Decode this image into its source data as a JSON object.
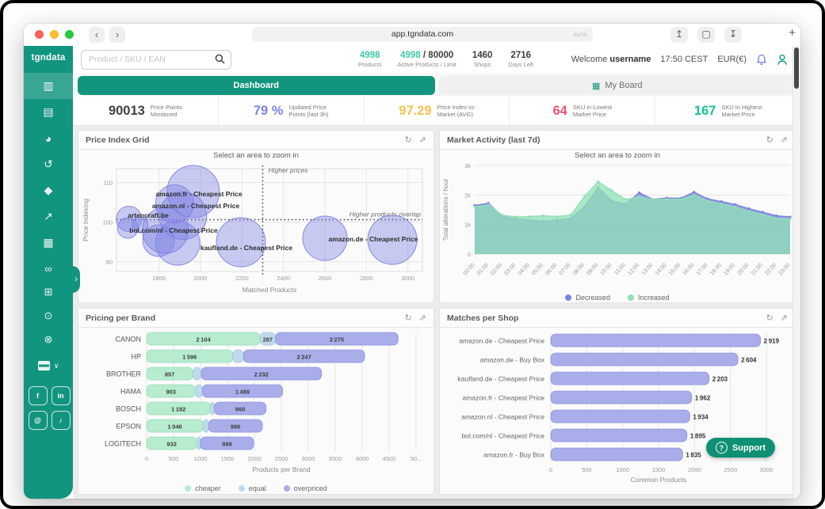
{
  "browser": {
    "url": "app.tgndata.com",
    "sync_label": "sync",
    "traffic_lights": [
      "#ff5f57",
      "#febc2e",
      "#28c840"
    ]
  },
  "brand": {
    "logo": "tgndata",
    "teal": "#12957e"
  },
  "sidebar": {
    "nav": [
      {
        "id": "dashboard",
        "active": true
      },
      {
        "id": "products",
        "active": false
      },
      {
        "id": "analytics",
        "active": false
      },
      {
        "id": "history",
        "active": false
      },
      {
        "id": "tags",
        "active": false
      },
      {
        "id": "trends",
        "active": false
      },
      {
        "id": "reports",
        "active": false
      }
    ],
    "tools": [
      {
        "id": "links"
      },
      {
        "id": "board"
      },
      {
        "id": "notifications"
      },
      {
        "id": "help"
      }
    ],
    "socials": [
      {
        "id": "facebook",
        "label": "f"
      },
      {
        "id": "linkedin",
        "label": "in"
      },
      {
        "id": "instagram",
        "label": "@"
      },
      {
        "id": "tiktok",
        "label": "♪"
      }
    ]
  },
  "header": {
    "search_placeholder": "Product / SKU / EAN",
    "stats": [
      {
        "value": "4998",
        "value2": "",
        "label": "Products",
        "accent": true
      },
      {
        "value": "4998",
        "value2": " / 80000",
        "label": "Active Products / Limit",
        "accent": true
      },
      {
        "value": "1460",
        "value2": "",
        "label": "Shops",
        "accent": false
      },
      {
        "value": "2716",
        "value2": "",
        "label": "Days Left",
        "accent": false
      }
    ],
    "welcome_prefix": "Welcome",
    "username": "username",
    "time": "17:50 CEST",
    "currency": "EUR(€)"
  },
  "tabs": [
    {
      "label": "Dashboard",
      "active": true
    },
    {
      "label": "My Board",
      "active": false
    }
  ],
  "kpis": [
    {
      "value": "90013",
      "line1": "Price Points",
      "line2": "Monitored",
      "color": "#414141"
    },
    {
      "value": "79 %",
      "line1": "Updated Price",
      "line2": "Points (last 3h)",
      "color": "#7b82e4"
    },
    {
      "value": "97.29",
      "line1": "Price Index vs",
      "line2": "Market (AVG)",
      "color": "#f6c24f"
    },
    {
      "value": "64",
      "line1": "SKU in Lowest",
      "line2": "Market Price",
      "color": "#f25270"
    },
    {
      "value": "167",
      "line1": "SKU in Highest",
      "line2": "Market Price",
      "color": "#15c39a"
    }
  ],
  "support_label": "Support",
  "chart_data": [
    {
      "type": "scatter",
      "title": "Price Index Grid",
      "subtitle": "Select an area to zoom in",
      "xlabel": "Matched Products",
      "ylabel": "Price Indexing",
      "xlim": [
        1595,
        3070
      ],
      "ylim": [
        87.5,
        113.5
      ],
      "xticks": [
        1800,
        2000,
        2200,
        2400,
        2600,
        2800,
        3000
      ],
      "yticks": [
        90,
        100,
        110
      ],
      "threshold_x": 2300,
      "threshold_y": 100.6,
      "annotation_v": "Higher prices",
      "annotation_h": "Higher products overlap",
      "bubbles": [
        {
          "x": 1655,
          "y": 100.8,
          "r": 16
        },
        {
          "x": 1650,
          "y": 98.5,
          "r": 13
        },
        {
          "x": 1708,
          "y": 99.3,
          "r": 10
        },
        {
          "x": 1875,
          "y": 104.6,
          "r": 24
        },
        {
          "x": 1965,
          "y": 107.7,
          "r": 33
        },
        {
          "x": 1915,
          "y": 101.6,
          "r": 30
        },
        {
          "x": 1830,
          "y": 97.9,
          "r": 29
        },
        {
          "x": 1890,
          "y": 94.7,
          "r": 28
        },
        {
          "x": 1798,
          "y": 95.3,
          "r": 20
        },
        {
          "x": 2195,
          "y": 94.9,
          "r": 31
        },
        {
          "x": 2600,
          "y": 95.9,
          "r": 28
        },
        {
          "x": 2925,
          "y": 95.5,
          "r": 31
        }
      ],
      "labels": [
        {
          "text": "amazon.fr - Cheapest Price",
          "lx": 152,
          "ly": 45
        },
        {
          "text": "amazon.nl - Cheapest Price",
          "lx": 148,
          "ly": 60
        },
        {
          "text": "artencraft.be",
          "lx": 88,
          "ly": 72
        },
        {
          "text": "bol.com/nl - Cheapest Price",
          "lx": 120,
          "ly": 91
        },
        {
          "text": "kaufland.de - Cheapest Price",
          "lx": 212,
          "ly": 113
        },
        {
          "text": "amazon.de - Cheapest Price",
          "lx": 372,
          "ly": 102
        }
      ],
      "bubble_color": "#7e84e3"
    },
    {
      "type": "area",
      "title": "Market Activity (last 7d)",
      "subtitle": "Select an area to zoom in",
      "ylabel": "Total alterations / hour",
      "ylim": [
        0,
        3000
      ],
      "ytick_labels": [
        "0",
        "1k",
        "2k",
        "3k"
      ],
      "yticks": [
        0,
        1000,
        2000,
        3000
      ],
      "x": [
        "00:00",
        "01:00",
        "02:00",
        "03:00",
        "04:00",
        "05:00",
        "06:00",
        "07:00",
        "08:00",
        "09:00",
        "10:00",
        "11:00",
        "12:00",
        "13:00",
        "14:00",
        "15:00",
        "16:00",
        "17:00",
        "18:00",
        "19:00",
        "20:00",
        "21:00",
        "22:00",
        "23:00"
      ],
      "series": [
        {
          "name": "Decreased",
          "color": "#7b82e0",
          "values": [
            1650,
            1720,
            1280,
            1200,
            1150,
            1120,
            1150,
            1200,
            1600,
            2250,
            1800,
            1700,
            2080,
            1850,
            1900,
            1890,
            2100,
            1870,
            1780,
            1680,
            1540,
            1420,
            1300,
            1260
          ]
        },
        {
          "name": "Increased",
          "color": "#8fe0b4",
          "values": [
            1600,
            1660,
            1320,
            1260,
            1270,
            1300,
            1270,
            1320,
            1950,
            2450,
            2150,
            1850,
            1950,
            1840,
            1860,
            1850,
            2000,
            1800,
            1700,
            1600,
            1450,
            1340,
            1210,
            1200
          ]
        }
      ],
      "legend_position": "bottom"
    },
    {
      "type": "bar",
      "title": "Pricing per Brand",
      "orientation": "horizontal",
      "stacked": true,
      "categories": [
        "CANON",
        "HP",
        "BROTHER",
        "HAMA",
        "BOSCH",
        "EPSON",
        "LOGITECH"
      ],
      "series": [
        {
          "name": "cheaper",
          "color": "#b7eccf",
          "stroke": "#9bdcb8",
          "values": [
            2104,
            1596,
            857,
            903,
            1182,
            1046,
            932
          ]
        },
        {
          "name": "equal",
          "color": "#bedbeb",
          "stroke": "#a5c8dd",
          "values": [
            287,
            202,
            156,
            131,
            74,
            105,
            65
          ]
        },
        {
          "name": "overpriced",
          "color": "#a9ade9",
          "stroke": "#8d92dd",
          "values": [
            2275,
            2247,
            2232,
            1489,
            960,
            996,
            989
          ]
        }
      ],
      "xlim": [
        0,
        5000
      ],
      "xtick_labels": [
        "0",
        "500",
        "1000",
        "1500",
        "2000",
        "2500",
        "3000",
        "3500",
        "4000",
        "4500",
        "50..."
      ],
      "xlabel": "Products per Brand",
      "legend_position": "bottom"
    },
    {
      "type": "bar",
      "title": "Matches per Shop",
      "orientation": "horizontal",
      "stacked": false,
      "categories": [
        "amazon.de - Cheapest Price",
        "amazon.de - Buy Box",
        "kaufland.de - Cheapest Price",
        "amazon.fr - Cheapest Price",
        "amazon.nl - Cheapest Price",
        "bol.com/nl - Cheapest Price",
        "amazon.fr - Buy Box"
      ],
      "values": [
        2919,
        2604,
        2203,
        1962,
        1934,
        1895,
        1835
      ],
      "bar_color": "#a9ade9",
      "bar_stroke": "#8d92dd",
      "xlim": [
        0,
        3000
      ],
      "xtick_labels": [
        "0",
        "500",
        "1000",
        "1500",
        "2000",
        "2500",
        "3000"
      ],
      "xlabel": "Common Products"
    }
  ]
}
